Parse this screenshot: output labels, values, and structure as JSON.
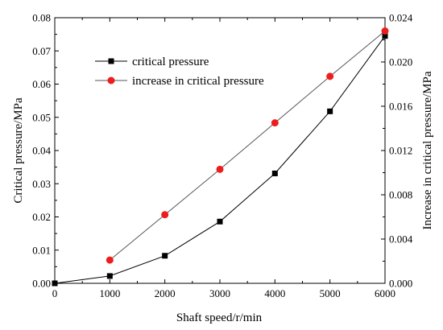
{
  "chart_data": {
    "type": "line",
    "xlabel": "Shaft speed/r/min",
    "ylabel": "Critical pressure/MPa",
    "y2label": "Increase in critical pressure/MPa",
    "xlim": [
      0,
      6000
    ],
    "ylim": [
      0,
      0.08
    ],
    "y2lim": [
      0,
      0.024
    ],
    "xticks": [
      "0",
      "1000",
      "2000",
      "3000",
      "4000",
      "5000",
      "6000"
    ],
    "yticks": [
      "0.00",
      "0.01",
      "0.02",
      "0.03",
      "0.04",
      "0.05",
      "0.06",
      "0.07",
      "0.08"
    ],
    "y2ticks": [
      "0.000",
      "0.004",
      "0.008",
      "0.012",
      "0.016",
      "0.020",
      "0.024"
    ],
    "legend_position": "top-left",
    "grid": false,
    "series": [
      {
        "name": "critical pressure",
        "axis": "left",
        "marker": "square",
        "color": "#000000",
        "x": [
          0,
          1000,
          2000,
          3000,
          4000,
          5000,
          6000
        ],
        "y": [
          0,
          0.0022,
          0.0083,
          0.0186,
          0.0331,
          0.0518,
          0.0745
        ]
      },
      {
        "name": "increase in critical pressure",
        "axis": "right",
        "marker": "circle",
        "color": "#ee1c1c",
        "line_color": "#555555",
        "x": [
          1000,
          2000,
          3000,
          4000,
          5000,
          6000
        ],
        "y": [
          0.0021,
          0.0062,
          0.0103,
          0.0145,
          0.0187,
          0.0228
        ]
      }
    ]
  }
}
